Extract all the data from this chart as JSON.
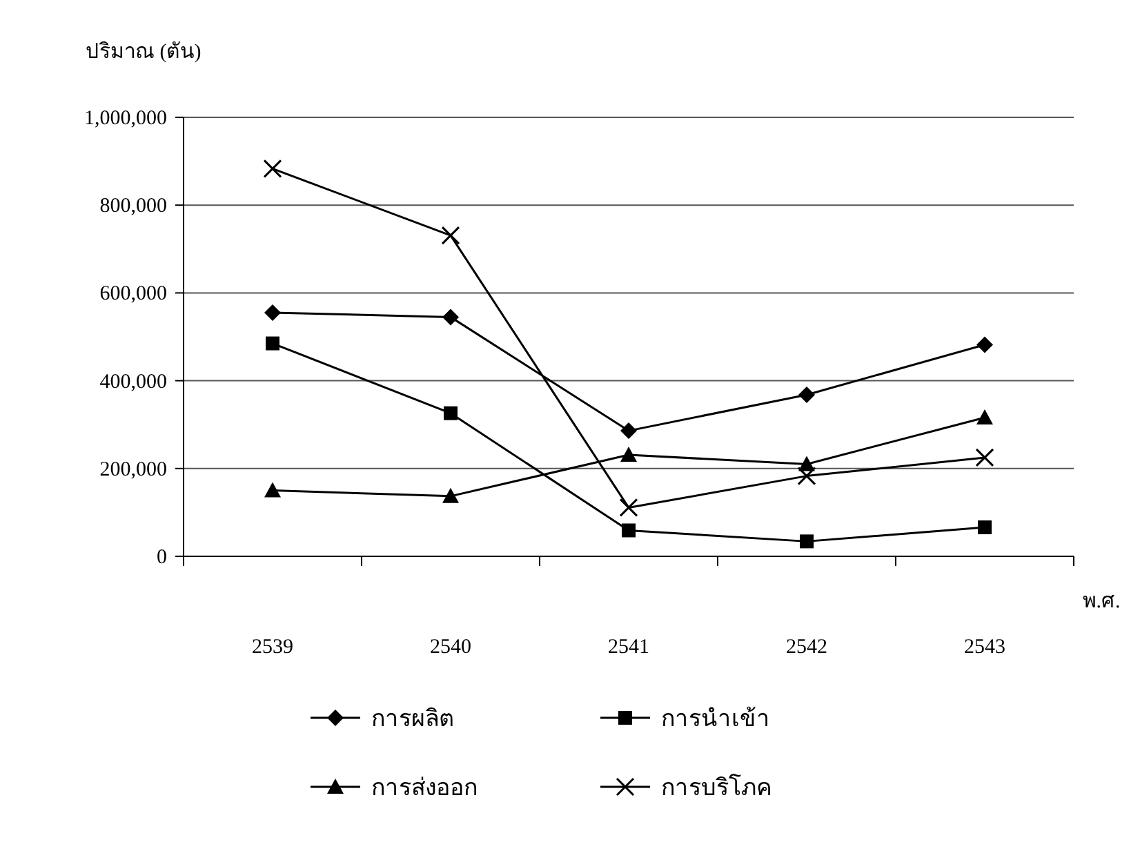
{
  "chart_data": {
    "type": "line",
    "ylabel": "ปริมาณ (ตัน)",
    "xlabel": "พ.ศ.",
    "categories": [
      "2539",
      "2540",
      "2541",
      "2542",
      "2543"
    ],
    "series": [
      {
        "name": "การผลิต",
        "color": "#000000",
        "marker": "diamond",
        "values": [
          555000,
          545000,
          286000,
          368000,
          482000
        ]
      },
      {
        "name": "การนำเข้า",
        "color": "#000000",
        "marker": "square",
        "values": [
          485000,
          326000,
          59000,
          34000,
          66000
        ]
      },
      {
        "name": "การส่งออก",
        "color": "#000000",
        "marker": "triangle",
        "values": [
          150000,
          137000,
          231000,
          210000,
          316000
        ]
      },
      {
        "name": "การบริโภค",
        "color": "#000000",
        "marker": "cross",
        "values": [
          883000,
          731000,
          111000,
          183000,
          225000
        ]
      }
    ],
    "ylim": [
      0,
      1000000
    ],
    "yticks": [
      {
        "value": 0,
        "label": "0"
      },
      {
        "value": 200000,
        "label": "200,000"
      },
      {
        "value": 400000,
        "label": "400,000"
      },
      {
        "value": 600000,
        "label": "600,000"
      },
      {
        "value": 800000,
        "label": "800,000"
      },
      {
        "value": 1000000,
        "label": "1,000,000"
      }
    ],
    "grid": "y",
    "legend": "bottom",
    "line_style": "solid"
  }
}
